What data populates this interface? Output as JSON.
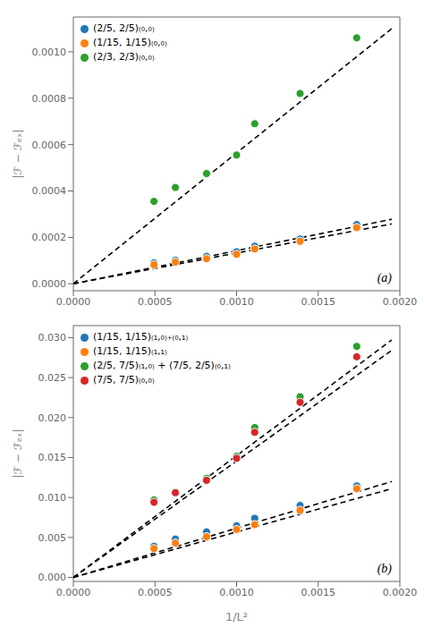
{
  "chart_data": [
    {
      "type": "scatter",
      "ylabel": "|ℱ − ℱₑₓ|",
      "annotation": "(a)",
      "legend": "upper left",
      "grid": false,
      "xlim": [
        0.0,
        0.002
      ],
      "xticks": [
        {
          "value": 0.0,
          "label": "0.0000"
        },
        {
          "value": 0.0005,
          "label": "0.0005"
        },
        {
          "value": 0.001,
          "label": "0.0010"
        },
        {
          "value": 0.0015,
          "label": "0.0015"
        },
        {
          "value": 0.002,
          "label": "0.0020"
        }
      ],
      "ylim": [
        -3e-05,
        0.00115
      ],
      "yticks": [
        {
          "value": 0.0,
          "label": "0.0000"
        },
        {
          "value": 0.0002,
          "label": "0.0002"
        },
        {
          "value": 0.0004,
          "label": "0.0004"
        },
        {
          "value": 0.0006,
          "label": "0.0006"
        },
        {
          "value": 0.0008,
          "label": "0.0008"
        },
        {
          "value": 0.001,
          "label": "0.0010"
        }
      ],
      "series": [
        {
          "type": "line",
          "line_style": "dashed",
          "color": "#000000",
          "x": [
            0.0,
            0.00195
          ],
          "values": [
            0.0,
            0.000278
          ]
        },
        {
          "type": "line",
          "line_style": "dashed",
          "color": "#000000",
          "x": [
            0.0,
            0.00195
          ],
          "values": [
            0.0,
            0.000258
          ]
        },
        {
          "type": "line",
          "line_style": "dashed",
          "color": "#000000",
          "x": [
            0.0,
            0.00195
          ],
          "values": [
            0.0,
            0.0011
          ]
        },
        {
          "type": "scatter",
          "marker": "o",
          "name": "(2/5, 2/5)₍₀,₀₎",
          "color": "#1f77b4",
          "x": [
            0.000494,
            0.000625,
            0.000816,
            0.001,
            0.001111,
            0.001389,
            0.001736
          ],
          "values": [
            9e-05,
            0.000101,
            0.000118,
            0.000138,
            0.000162,
            0.000193,
            0.000255
          ]
        },
        {
          "type": "scatter",
          "marker": "o",
          "name": "(1/15, 1/15)₍₀,₀₎",
          "color": "#ff7f0e",
          "x": [
            0.000494,
            0.000625,
            0.000816,
            0.001,
            0.001111,
            0.001389,
            0.001736
          ],
          "values": [
            8.2e-05,
            9.3e-05,
            0.000108,
            0.000127,
            0.00015,
            0.000183,
            0.000242
          ]
        },
        {
          "type": "scatter",
          "marker": "o",
          "name": "(2/3, 2/3)₍₀,₀₎",
          "color": "#2ca02c",
          "x": [
            0.000494,
            0.000625,
            0.000816,
            0.001,
            0.001111,
            0.001389,
            0.001736
          ],
          "values": [
            0.000355,
            0.000415,
            0.000475,
            0.000555,
            0.00069,
            0.00082,
            0.00106
          ]
        }
      ]
    },
    {
      "type": "scatter",
      "ylabel": "|ℱ − ℱₑₓ|",
      "xlabel": "1/L²",
      "annotation": "(b)",
      "legend": "upper left",
      "grid": false,
      "xlim": [
        0.0,
        0.002
      ],
      "xticks": [
        {
          "value": 0.0,
          "label": "0.0000"
        },
        {
          "value": 0.0005,
          "label": "0.0005"
        },
        {
          "value": 0.001,
          "label": "0.0010"
        },
        {
          "value": 0.0015,
          "label": "0.0015"
        },
        {
          "value": 0.002,
          "label": "0.0020"
        }
      ],
      "ylim": [
        -0.0005,
        0.0315
      ],
      "yticks": [
        {
          "value": 0.0,
          "label": "0.000"
        },
        {
          "value": 0.005,
          "label": "0.005"
        },
        {
          "value": 0.01,
          "label": "0.010"
        },
        {
          "value": 0.015,
          "label": "0.015"
        },
        {
          "value": 0.02,
          "label": "0.020"
        },
        {
          "value": 0.025,
          "label": "0.025"
        },
        {
          "value": 0.03,
          "label": "0.030"
        }
      ],
      "series": [
        {
          "type": "line",
          "line_style": "dashed",
          "color": "#000000",
          "x": [
            0.0,
            0.00195
          ],
          "values": [
            0.0,
            0.012
          ]
        },
        {
          "type": "line",
          "line_style": "dashed",
          "color": "#000000",
          "x": [
            0.0,
            0.00195
          ],
          "values": [
            0.0,
            0.0111
          ]
        },
        {
          "type": "line",
          "line_style": "dashed",
          "color": "#000000",
          "x": [
            0.0,
            0.00195
          ],
          "values": [
            0.0,
            0.0297
          ]
        },
        {
          "type": "line",
          "line_style": "dashed",
          "color": "#000000",
          "x": [
            0.0,
            0.00195
          ],
          "values": [
            0.0,
            0.0284
          ]
        },
        {
          "type": "scatter",
          "marker": "o",
          "name": "(1/15, 1/15)₍₁,₀₎₊₍₀,₁₎",
          "color": "#1f77b4",
          "x": [
            0.000494,
            0.000625,
            0.000816,
            0.001,
            0.001111,
            0.001389,
            0.001736
          ],
          "values": [
            0.0039,
            0.0048,
            0.0057,
            0.00645,
            0.0074,
            0.009,
            0.01145
          ]
        },
        {
          "type": "scatter",
          "marker": "o",
          "name": "(1/15, 1/15)₍₁,₁₎",
          "color": "#ff7f0e",
          "x": [
            0.000494,
            0.000625,
            0.000816,
            0.001,
            0.001111,
            0.001389,
            0.001736
          ],
          "values": [
            0.0036,
            0.0043,
            0.0051,
            0.006,
            0.0066,
            0.0084,
            0.0111
          ]
        },
        {
          "type": "scatter",
          "marker": "o",
          "name": "(2/5, 7/5)₍₁,₀₎ + (7/5, 2/5)₍₀,₁₎",
          "color": "#2ca02c",
          "x": [
            0.000494,
            0.000625,
            0.000816,
            0.001,
            0.001111,
            0.001389,
            0.001736
          ],
          "values": [
            0.0097,
            0.0107,
            0.0124,
            0.01515,
            0.01875,
            0.0226,
            0.0289
          ]
        },
        {
          "type": "scatter",
          "marker": "o",
          "name": "(7/5, 7/5)₍₀,₀₎",
          "color": "#d62728",
          "x": [
            0.000494,
            0.000625,
            0.000816,
            0.001,
            0.001111,
            0.001389,
            0.001736
          ],
          "values": [
            0.0094,
            0.0106,
            0.01215,
            0.0149,
            0.01815,
            0.0219,
            0.0276
          ]
        }
      ]
    }
  ]
}
